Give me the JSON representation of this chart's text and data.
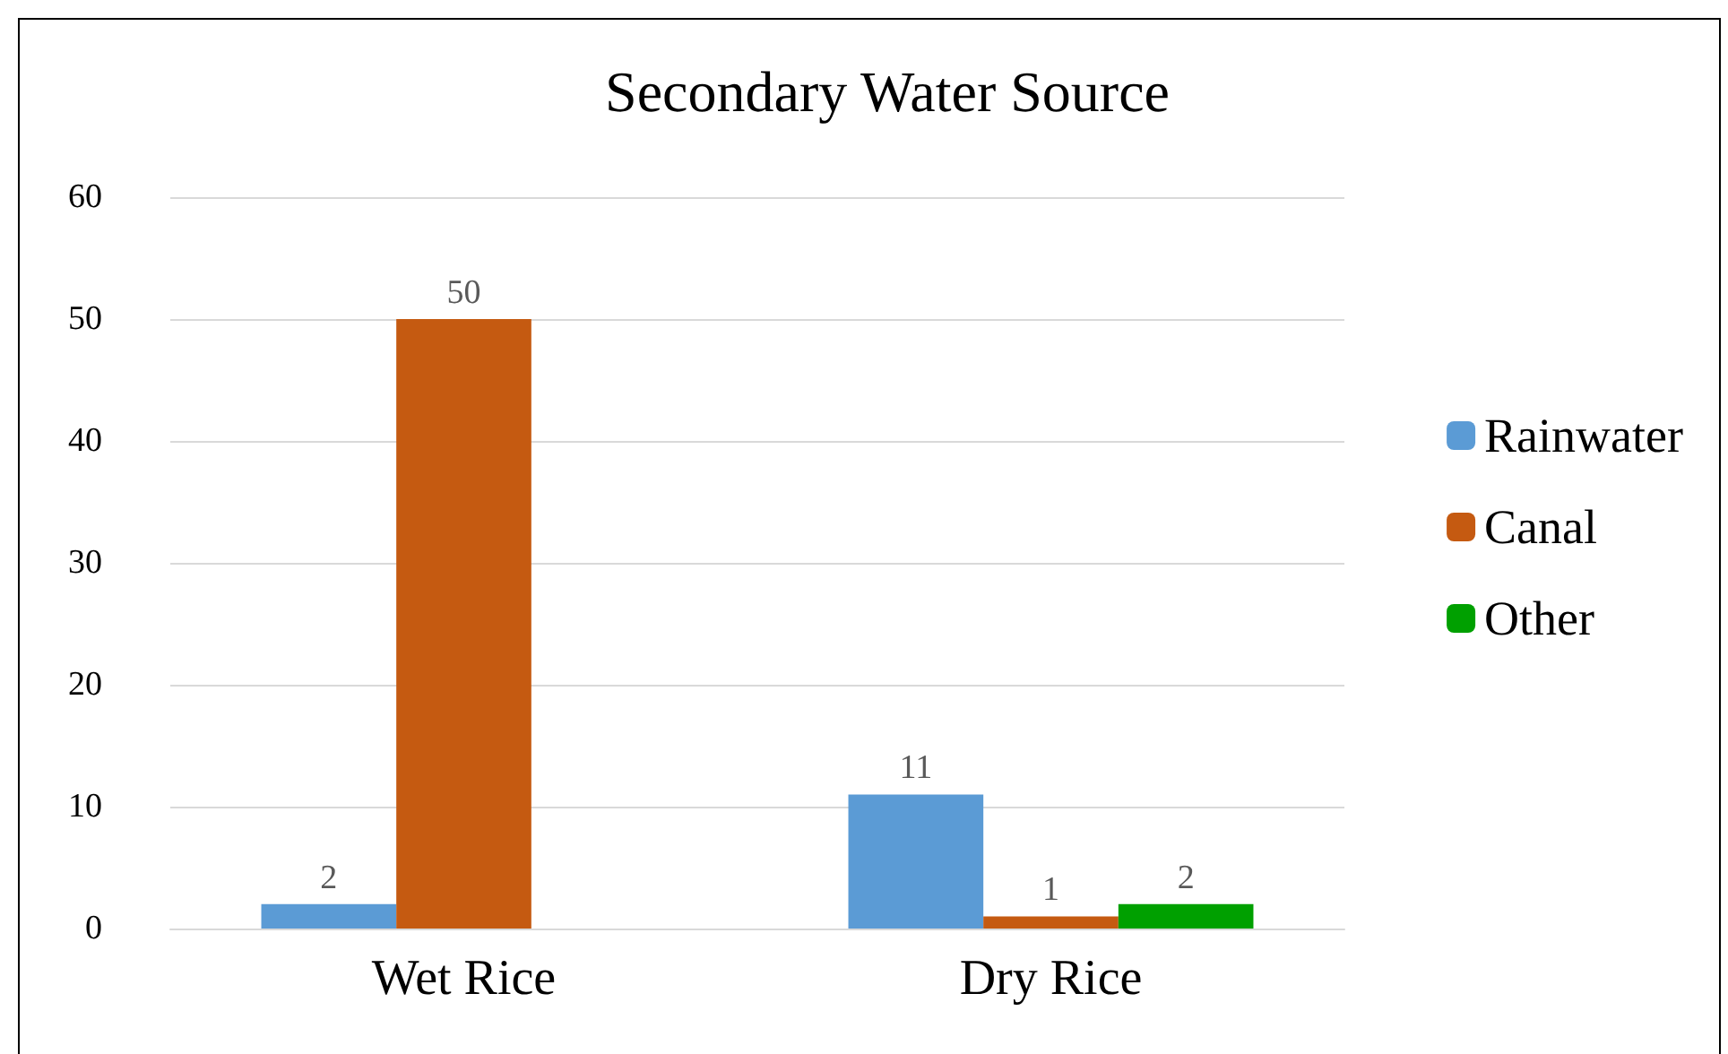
{
  "chart_data": {
    "type": "bar",
    "title": "Secondary Water Source",
    "categories": [
      "Wet Rice",
      "Dry Rice"
    ],
    "series": [
      {
        "name": "Rainwater",
        "color": "#5b9bd5",
        "values": [
          2,
          11
        ]
      },
      {
        "name": "Canal",
        "color": "#c55a11",
        "values": [
          50,
          1
        ]
      },
      {
        "name": "Other",
        "color": "#00a000",
        "values": [
          null,
          2
        ]
      }
    ],
    "ylim": [
      0,
      60
    ],
    "yticks": [
      0,
      10,
      20,
      30,
      40,
      50,
      60
    ],
    "grid": "y",
    "legend": "right",
    "data_labels": true
  }
}
